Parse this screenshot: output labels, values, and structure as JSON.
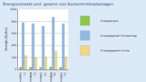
{
  "chart_data": {
    "type": "bar",
    "title": "Energieumsatz und -gewinn von Kurzumtriebsplantagen",
    "y_label": "Energie [GJ/ha]",
    "categories": [
      "T1 - Sommerernte Pappel",
      "T2 - Winterernte Pappel",
      "T3 - Sommerernte Weide",
      "T4 - Winterernte Weide",
      "T5 - Sommerernte Robinie"
    ],
    "series": [
      {
        "name": "Energieinput",
        "color": "#8dc63f",
        "values": [
          40,
          38,
          36,
          42,
          37
        ]
      },
      {
        "name": "Energiegehalt Ernteertrag",
        "color": "#8fb8e6",
        "values": [
          780,
          760,
          720,
          870,
          760
        ]
      },
      {
        "name": "Energiegewinn Ernte",
        "color": "#f5d77a",
        "values": [
          230,
          200,
          210,
          300,
          210
        ]
      }
    ],
    "ylim": [
      0,
      1000
    ],
    "yticks": [
      0,
      200,
      400,
      600,
      800,
      1000
    ],
    "grid": true,
    "legend": "right"
  }
}
